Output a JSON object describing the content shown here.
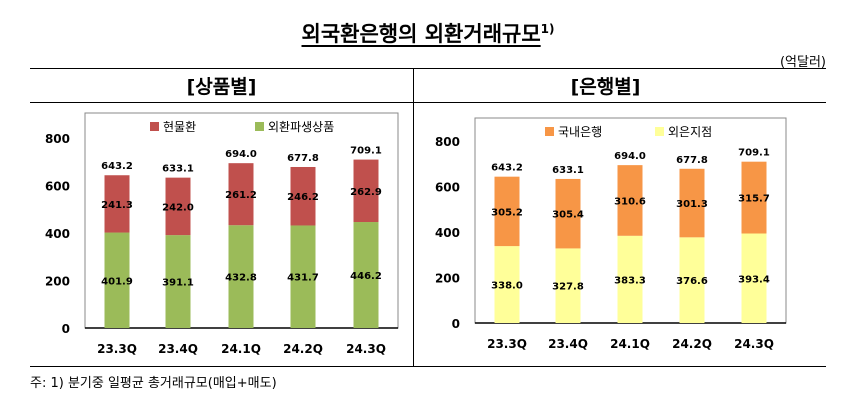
{
  "title": "외국환은행의 외환거래규모",
  "title_sup": "1)",
  "unit": "(억달러)",
  "footnote": "주: 1) 분기중 일평균 총거래규모(매입+매도)",
  "chart_data": [
    {
      "type": "bar",
      "stacked": true,
      "header": "[상품별]",
      "categories": [
        "23.3Q",
        "23.4Q",
        "24.1Q",
        "24.2Q",
        "24.3Q"
      ],
      "ylim": [
        0,
        800
      ],
      "yticks": [
        0,
        200,
        400,
        600,
        800
      ],
      "legend_position": "top",
      "series": [
        {
          "name": "외환파생상품",
          "color": "#9BBB59",
          "values": [
            401.9,
            391.1,
            432.8,
            431.7,
            446.2
          ]
        },
        {
          "name": "현물환",
          "color": "#C0504D",
          "values": [
            241.3,
            242.0,
            261.2,
            246.2,
            262.9
          ]
        }
      ],
      "totals": [
        643.2,
        633.1,
        694.0,
        677.8,
        709.1
      ]
    },
    {
      "type": "bar",
      "stacked": true,
      "header": "[은행별]",
      "categories": [
        "23.3Q",
        "23.4Q",
        "24.1Q",
        "24.2Q",
        "24.3Q"
      ],
      "ylim": [
        0,
        800
      ],
      "yticks": [
        0,
        200,
        400,
        600,
        800
      ],
      "legend_position": "top",
      "series": [
        {
          "name": "외은지점",
          "color": "#FFFF99",
          "values": [
            338.0,
            327.8,
            383.3,
            376.6,
            393.4
          ]
        },
        {
          "name": "국내은행",
          "color": "#F79646",
          "values": [
            305.2,
            305.4,
            310.6,
            301.3,
            315.7
          ]
        }
      ],
      "totals": [
        643.2,
        633.1,
        694.0,
        677.8,
        709.1
      ]
    }
  ]
}
